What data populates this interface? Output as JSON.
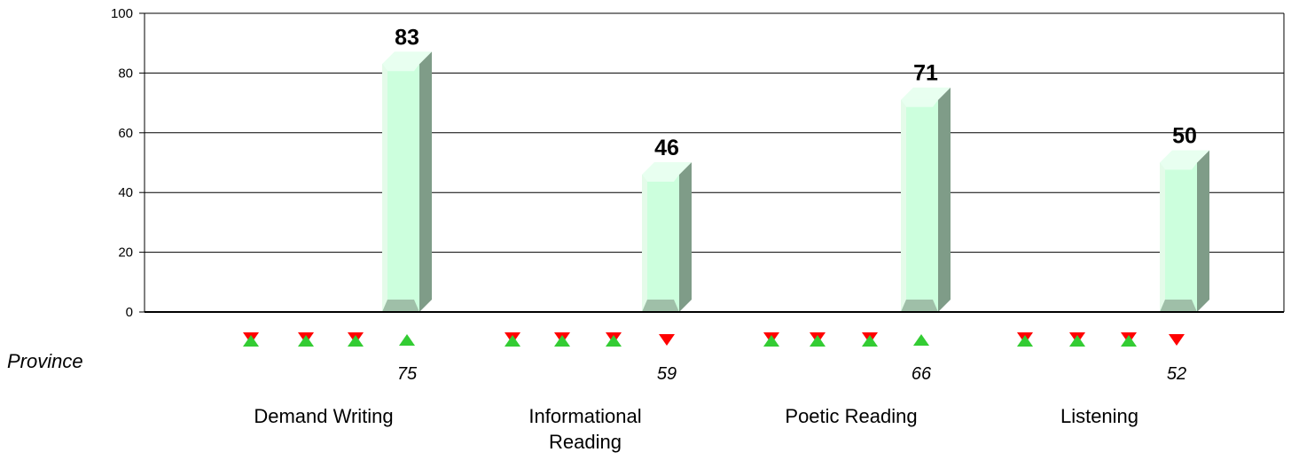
{
  "chart_data": {
    "type": "bar",
    "categories": [
      "Demand Writing",
      "Informational Reading",
      "Poetic Reading",
      "Listening"
    ],
    "category_lines": [
      [
        "Demand Writing"
      ],
      [
        "Informational",
        "Reading"
      ],
      [
        "Poetic Reading"
      ],
      [
        "Listening"
      ]
    ],
    "series": [
      {
        "values": [
          83,
          46,
          71,
          50
        ]
      }
    ],
    "value_labels": [
      "83",
      "46",
      "71",
      "50"
    ],
    "reference_row": {
      "label": "Province",
      "values": [
        75,
        59,
        66,
        52
      ],
      "value_labels": [
        "75",
        "59",
        "66",
        "52"
      ]
    },
    "indicator_rows": [
      [
        "mixed",
        "mixed",
        "mixed",
        "up"
      ],
      [
        "mixed",
        "mixed",
        "mixed",
        "down"
      ],
      [
        "mixed",
        "mixed",
        "mixed",
        "up"
      ],
      [
        "mixed",
        "mixed",
        "mixed",
        "down"
      ]
    ],
    "ylim": [
      0,
      100
    ],
    "y_ticks": [
      0,
      20,
      40,
      60,
      80,
      100
    ],
    "y_tick_labels": [
      "0",
      "20",
      "40",
      "60",
      "80",
      "100"
    ],
    "grid": true,
    "colors": {
      "bar_face": "#ccffdd",
      "bar_side": "#7f9c88",
      "bar_top": "#e8fff0",
      "up_marker": "#33cc33",
      "down_marker": "#ff0000",
      "axis": "#000000"
    }
  }
}
